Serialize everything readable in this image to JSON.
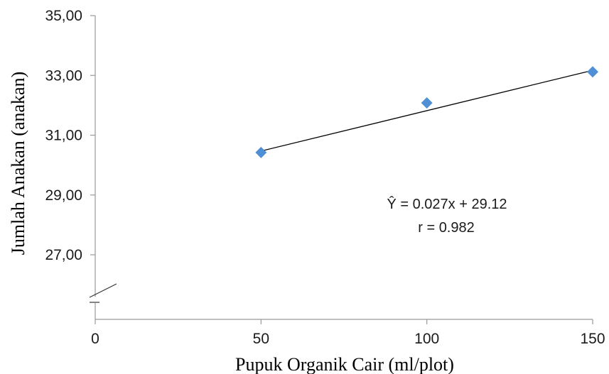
{
  "chart_data": {
    "type": "scatter",
    "xlabel": "Pupuk Organik Cair (ml/plot)",
    "ylabel": "Jumlah Anakan  (anakan)",
    "x_ticks": [
      0,
      50,
      100,
      150
    ],
    "x_tick_labels": [
      "0",
      "50",
      "100",
      "150"
    ],
    "y_ticks": [
      27,
      29,
      31,
      33,
      35
    ],
    "y_tick_labels": [
      "27,00",
      "29,00",
      "31,00",
      "33,00",
      "35,00"
    ],
    "xlim": [
      0,
      150
    ],
    "ylim": [
      25,
      35
    ],
    "axis_break": true,
    "grid": false,
    "legend": "none",
    "series": [
      {
        "x": [
          50,
          100,
          150
        ],
        "y": [
          30.42,
          32.08,
          33.12
        ],
        "marker": "diamond",
        "color": "#4f8fd6"
      }
    ],
    "trendline": {
      "slope": 0.027,
      "intercept": 29.12,
      "x_range": [
        50,
        150
      ],
      "color": "#000000"
    },
    "annotations": [
      "Ŷ = 0.027x + 29.12",
      "r = 0.982"
    ]
  }
}
